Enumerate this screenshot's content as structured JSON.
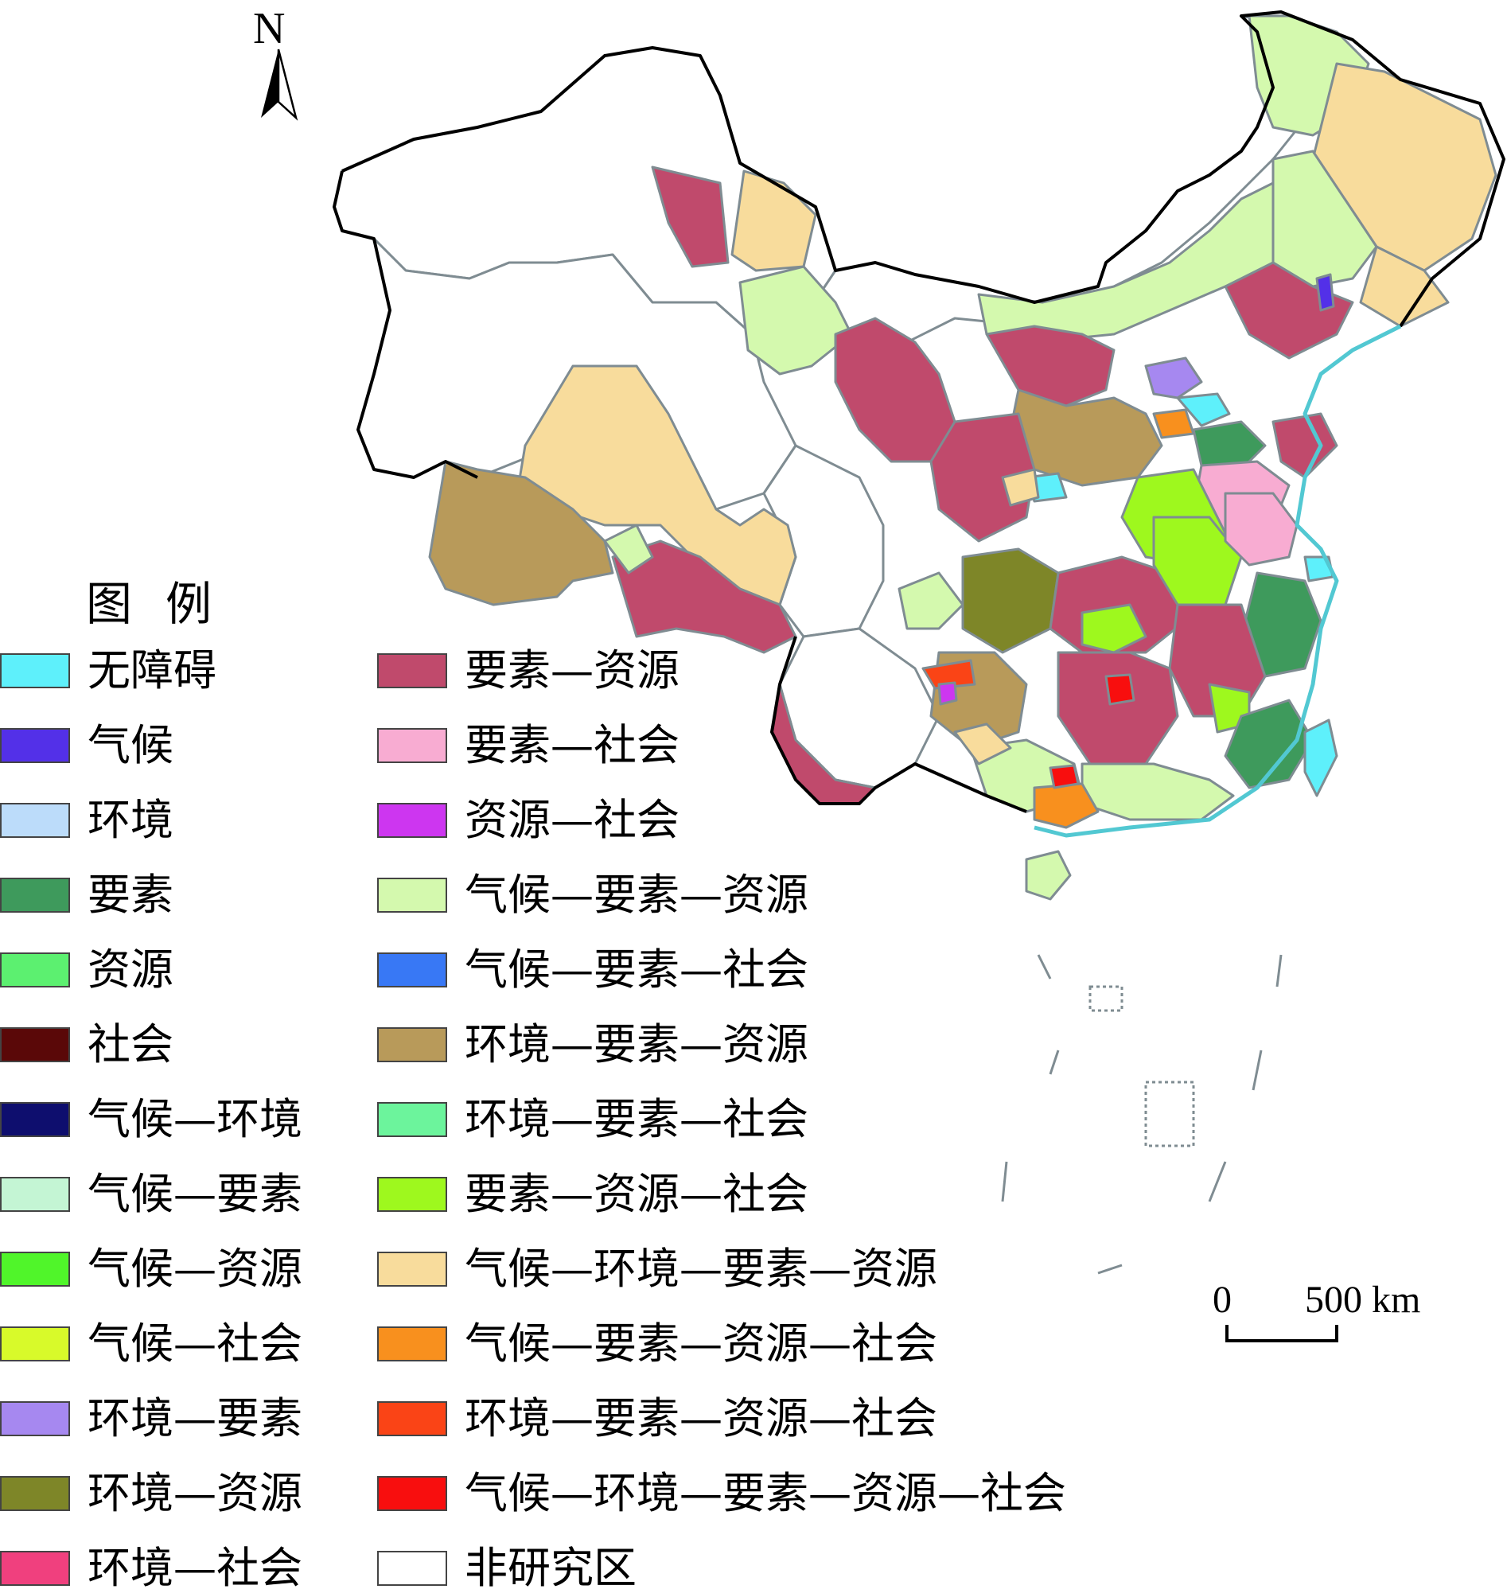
{
  "north_arrow": {
    "letter": "N"
  },
  "legend": {
    "title": "图例",
    "left_column": [
      {
        "label": "无障碍",
        "color": "#5ef0fb"
      },
      {
        "label": "气候",
        "color": "#5330e8"
      },
      {
        "label": "环境",
        "color": "#bcdcfa"
      },
      {
        "label": "要素",
        "color": "#3e9a5c"
      },
      {
        "label": "资源",
        "color": "#5cf070"
      },
      {
        "label": "社会",
        "color": "#5a0808"
      },
      {
        "label": "气候—环境",
        "color": "#0e0e6e"
      },
      {
        "label": "气候—要素",
        "color": "#c4f5d4"
      },
      {
        "label": "气候—资源",
        "color": "#50f52a"
      },
      {
        "label": "气候—社会",
        "color": "#d8fa2a"
      },
      {
        "label": "环境—要素",
        "color": "#a688f0"
      },
      {
        "label": "环境—资源",
        "color": "#7e8628"
      },
      {
        "label": "环境—社会",
        "color": "#f0407e"
      }
    ],
    "right_column": [
      {
        "label": "要素—资源",
        "color": "#c04a6c"
      },
      {
        "label": "要素—社会",
        "color": "#f8acd2"
      },
      {
        "label": "资源—社会",
        "color": "#cd36f0"
      },
      {
        "label": "气候—要素—资源",
        "color": "#d4f9ae"
      },
      {
        "label": "气候—要素—社会",
        "color": "#3878f5"
      },
      {
        "label": "环境—要素—资源",
        "color": "#b89a5a"
      },
      {
        "label": "环境—要素—社会",
        "color": "#6cf49c"
      },
      {
        "label": "要素—资源—社会",
        "color": "#9ef81e"
      },
      {
        "label": "气候—环境—要素—资源",
        "color": "#f8dc9c"
      },
      {
        "label": "气候—要素—资源—社会",
        "color": "#f8901e"
      },
      {
        "label": "环境—要素—资源—社会",
        "color": "#fa4416"
      },
      {
        "label": "气候—环境—要素—资源—社会",
        "color": "#f80e0e"
      },
      {
        "label": "非研究区",
        "color": "#ffffff"
      }
    ]
  },
  "scale_bar": {
    "zero_label": "0",
    "distance_label": "500 km"
  },
  "colors": {
    "boundary": "#7f8c92",
    "outline": "#000000",
    "coast": "#52c8d2"
  }
}
